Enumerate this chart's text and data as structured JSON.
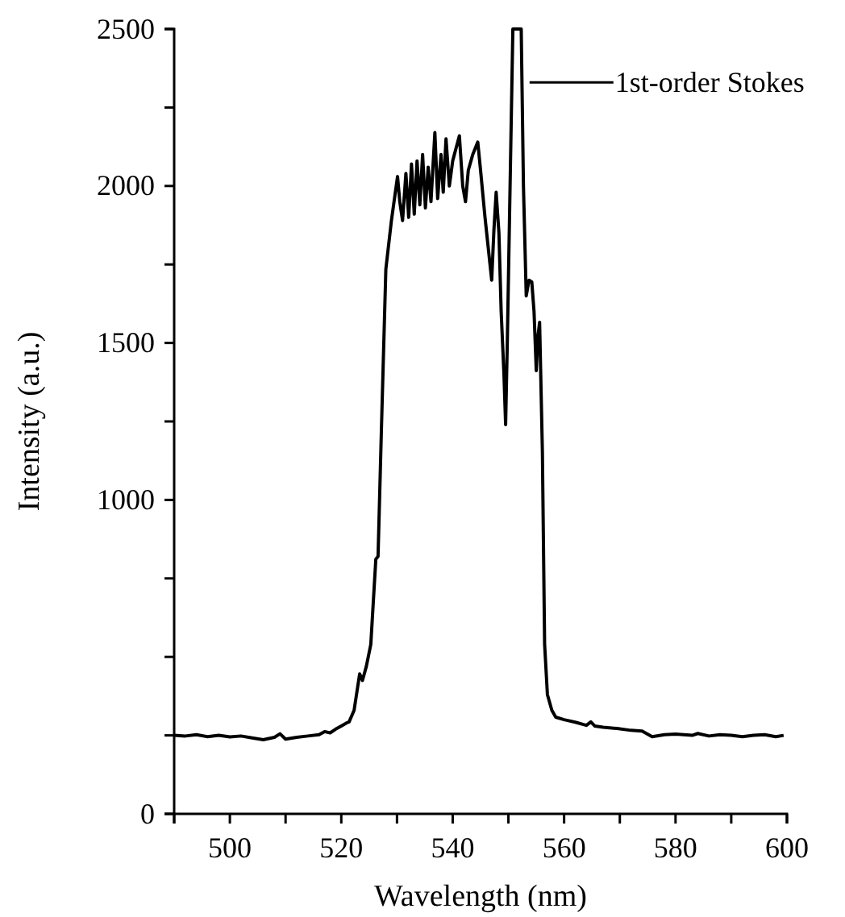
{
  "chart_data": {
    "type": "line",
    "xlabel": "Wavelength (nm)",
    "ylabel": "Intensity (a.u.)",
    "xlim": [
      490,
      600
    ],
    "ylim": [
      0,
      2500
    ],
    "xticks": [
      {
        "value": 490,
        "label": null
      },
      500,
      {
        "value": 510,
        "label": null
      },
      520,
      {
        "value": 530,
        "label": null
      },
      540,
      {
        "value": 550,
        "label": null
      },
      560,
      {
        "value": 570,
        "label": null
      },
      580,
      {
        "value": 590,
        "label": null
      },
      600
    ],
    "yticks": [
      0,
      {
        "value": 250,
        "label": null
      },
      {
        "value": 500,
        "label": null
      },
      {
        "value": 750,
        "label": null
      },
      1000,
      {
        "value": 1250,
        "label": null
      },
      1500,
      {
        "value": 1750,
        "label": null
      },
      2000,
      {
        "value": 2250,
        "label": null
      },
      2500
    ],
    "grid": false,
    "marker": "none",
    "line_style": "solid",
    "annotations": [
      {
        "text": "1st-order Stokes",
        "x": 553.8,
        "y": 2330
      }
    ],
    "series": [
      {
        "color": "#000000",
        "x": [
          490,
          492,
          494,
          496,
          498,
          500,
          502,
          504,
          506,
          508,
          509,
          510,
          512,
          514,
          516,
          517,
          518,
          519,
          520,
          521,
          521.4,
          522.3,
          523.3,
          523.8,
          524.5,
          525.3,
          526.2,
          526.6,
          527.2,
          528,
          529,
          530.1,
          530.5,
          531,
          531.6,
          532.1,
          532.6,
          533.1,
          533.6,
          534.1,
          534.6,
          535.1,
          535.6,
          536.1,
          536.8,
          537.3,
          537.9,
          538.3,
          538.8,
          539.4,
          540,
          540.6,
          541.2,
          541.8,
          542.3,
          542.8,
          543.6,
          544.5,
          545,
          545.8,
          546.4,
          547,
          547.4,
          547.8,
          548.3,
          548.7,
          549.2,
          549.5,
          549.8,
          550.3,
          550.8,
          551.5,
          552.3,
          552.7,
          553.2,
          553.7,
          554.2,
          554.6,
          555,
          555.3,
          555.6,
          556.1,
          556.5,
          557,
          557.8,
          558.5,
          560,
          562,
          564,
          564.8,
          565.5,
          567,
          569.5,
          572,
          574,
          575.8,
          578,
          580,
          583,
          584,
          586,
          588,
          590,
          592,
          594,
          596,
          598,
          599.4
        ],
        "values": [
          250,
          248,
          252,
          246,
          250,
          245,
          248,
          242,
          236,
          244,
          255,
          238,
          244,
          248,
          252,
          262,
          258,
          270,
          280,
          290,
          293,
          330,
          446,
          425,
          470,
          540,
          811,
          820,
          1222,
          1735,
          1890,
          2030,
          1950,
          1890,
          2040,
          1900,
          2070,
          1910,
          2080,
          1940,
          2100,
          1930,
          2060,
          1950,
          2170,
          1960,
          2100,
          1980,
          2150,
          2000,
          2080,
          2120,
          2160,
          2000,
          1950,
          2050,
          2100,
          2140,
          2050,
          1900,
          1800,
          1700,
          1860,
          1980,
          1850,
          1600,
          1400,
          1240,
          1500,
          2000,
          2500,
          2500,
          2500,
          2000,
          1650,
          1700,
          1694,
          1600,
          1412,
          1520,
          1566,
          1155,
          540,
          380,
          330,
          308,
          300,
          292,
          282,
          293,
          280,
          276,
          272,
          266,
          264,
          246,
          252,
          254,
          250,
          256,
          248,
          252,
          250,
          246,
          250,
          252,
          246,
          250
        ]
      }
    ]
  }
}
